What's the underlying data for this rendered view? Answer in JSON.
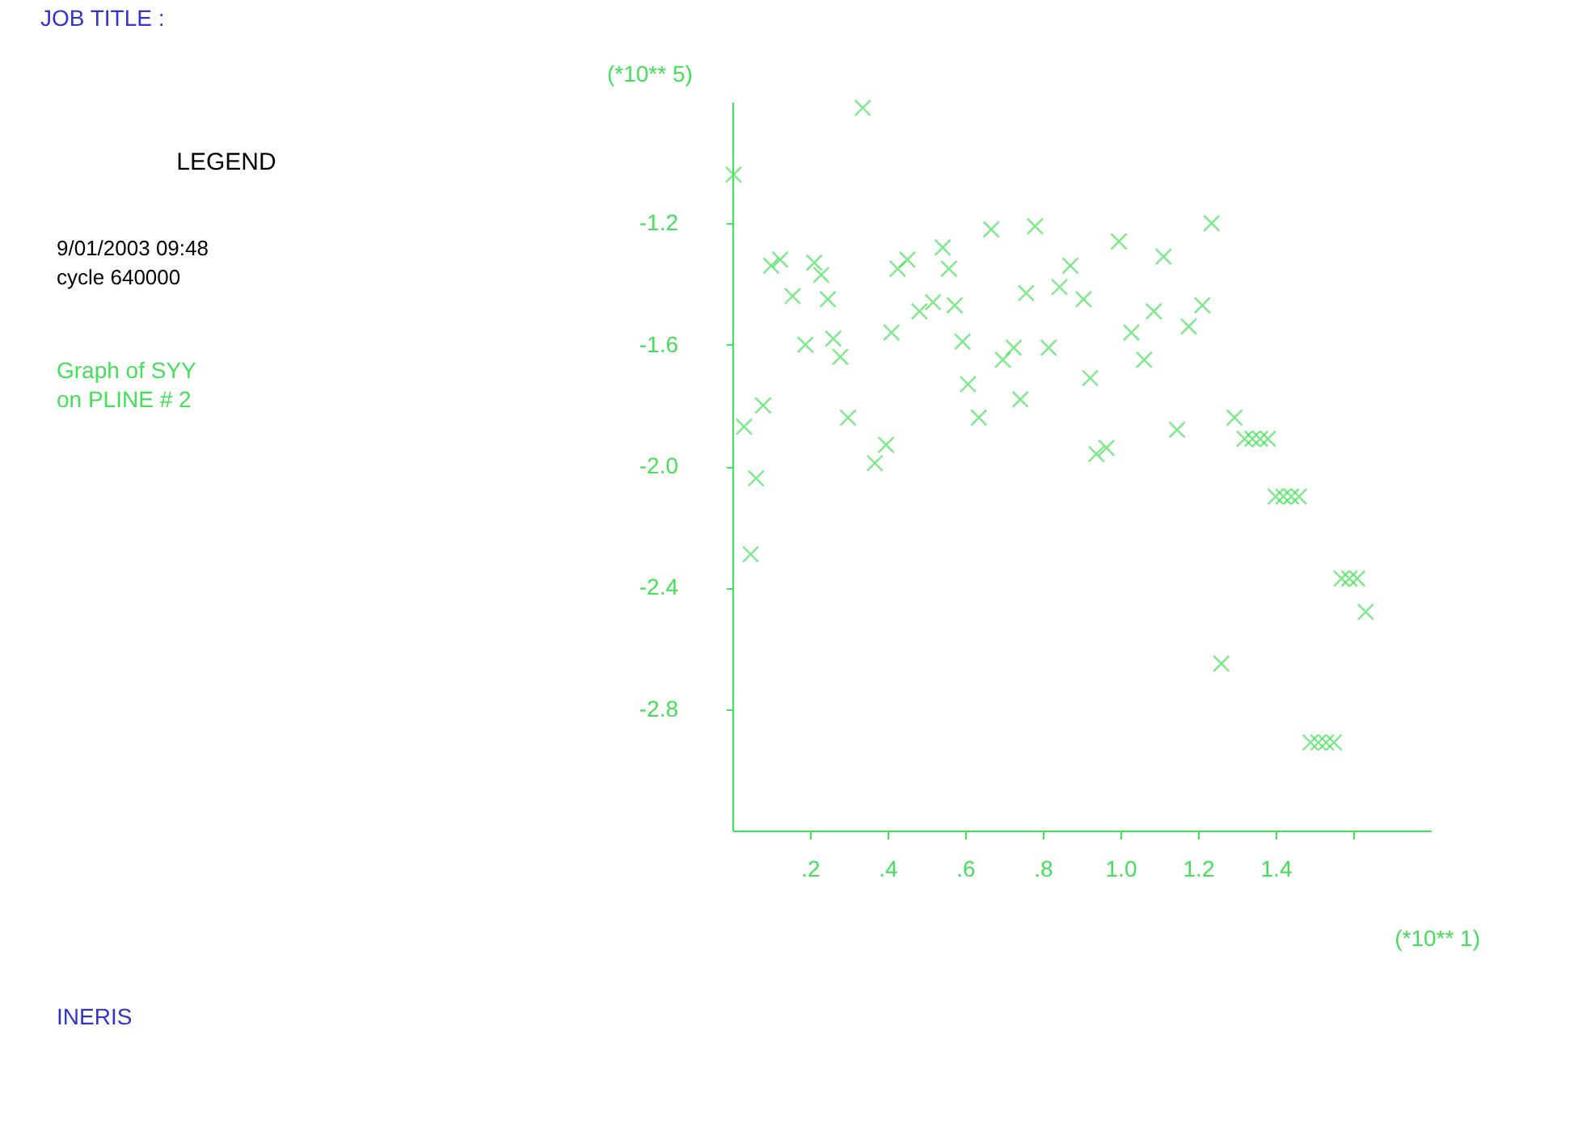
{
  "chart_data": {
    "type": "scatter",
    "title": "JOB TITLE :",
    "ylabel": "(*10** 5)",
    "xlabel": "(*10** 1)",
    "annotations": [
      "LEGEND",
      "9/01/2003  09:48",
      "cycle 640000",
      "Graph of SYY\n  on PLINE # 2",
      "INERIS"
    ],
    "x": [
      0.336,
      0.003,
      0.1,
      0.123,
      0.211,
      0.229,
      0.155,
      0.246,
      0.188,
      0.26,
      0.278,
      0.03,
      0.079,
      0.061,
      0.298,
      0.367,
      0.396,
      0.41,
      0.426,
      0.451,
      0.542,
      0.558,
      0.482,
      0.517,
      0.573,
      0.593,
      0.607,
      0.635,
      0.667,
      0.78,
      0.757,
      0.697,
      0.725,
      0.742,
      0.815,
      0.843,
      0.871,
      0.905,
      0.996,
      1.111,
      1.235,
      1.086,
      1.211,
      1.028,
      1.176,
      1.061,
      0.922,
      1.146,
      0.964,
      0.938,
      1.294,
      1.32,
      1.34,
      1.36,
      1.38,
      1.4,
      1.42,
      1.44,
      1.46,
      1.57,
      1.59,
      1.61,
      1.632,
      1.26,
      1.49,
      1.51,
      1.53,
      1.55,
      0.047
    ],
    "series": [
      {
        "color": "#44e05a",
        "values": [
          -0.82,
          -1.04,
          -1.34,
          -1.32,
          -1.33,
          -1.37,
          -1.44,
          -1.45,
          -1.6,
          -1.58,
          -1.64,
          -1.87,
          -1.8,
          -2.04,
          -1.84,
          -1.99,
          -1.93,
          -1.56,
          -1.35,
          -1.32,
          -1.28,
          -1.35,
          -1.49,
          -1.46,
          -1.47,
          -1.59,
          -1.73,
          -1.84,
          -1.22,
          -1.21,
          -1.43,
          -1.65,
          -1.61,
          -1.78,
          -1.61,
          -1.41,
          -1.34,
          -1.45,
          -1.26,
          -1.31,
          -1.2,
          -1.49,
          -1.47,
          -1.56,
          -1.54,
          -1.65,
          -1.71,
          -1.88,
          -1.94,
          -1.96,
          -1.84,
          -1.91,
          -1.91,
          -1.91,
          -1.91,
          -2.1,
          -2.1,
          -2.1,
          -2.1,
          -2.37,
          -2.37,
          -2.37,
          -2.48,
          -2.65,
          -2.91,
          -2.91,
          -2.91,
          -2.91,
          -2.29
        ]
      }
    ],
    "marker": "cross",
    "grid": false,
    "legend": false,
    "xlim": [
      0,
      1.8
    ],
    "ylim": [
      -3.2,
      -0.8
    ],
    "xticks": [
      {
        "value": 0.2,
        "label": ".2"
      },
      {
        "value": 0.4,
        "label": ".4"
      },
      {
        "value": 0.6,
        "label": ".6"
      },
      {
        "value": 0.8,
        "label": ".8"
      },
      {
        "value": 1.0,
        "label": "1.0"
      },
      {
        "value": 1.2,
        "label": "1.2"
      },
      {
        "value": 1.4,
        "label": "1.4"
      },
      {
        "value": 1.6,
        "label": null
      }
    ],
    "yticks": [
      -1.2,
      -1.6,
      {
        "value": -2.0,
        "label": "-2.0"
      },
      -2.4,
      -2.8
    ]
  }
}
